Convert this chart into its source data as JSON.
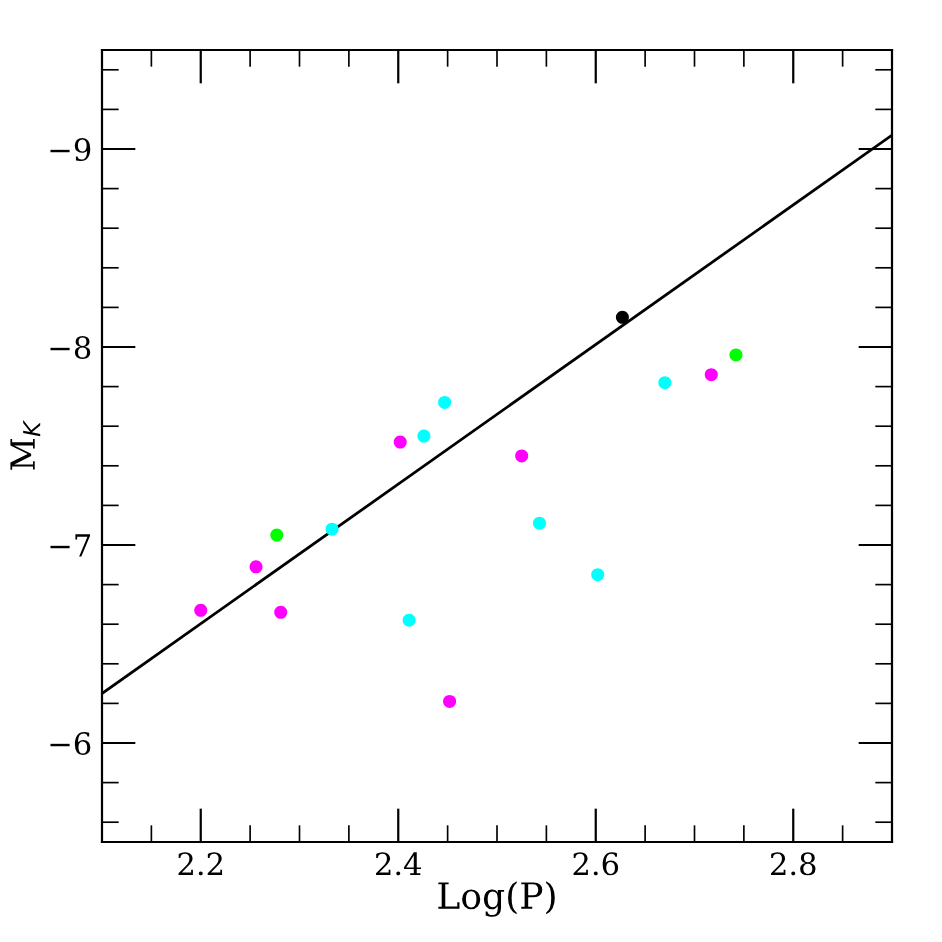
{
  "chart_data": {
    "type": "scatter",
    "xlabel": "Log(P)",
    "ylabel": "M$_{K}$",
    "xlim": [
      2.1,
      2.9
    ],
    "ylim": [
      -5.5,
      -9.5
    ],
    "xticks": [
      2.2,
      2.4,
      2.6,
      2.8
    ],
    "yticks": [
      {
        "value": -9,
        "label": "−9"
      },
      {
        "value": -8,
        "label": "−8"
      },
      {
        "value": -7,
        "label": "−7"
      },
      {
        "value": -6,
        "label": "−6"
      }
    ],
    "marker": "circle",
    "grid": false,
    "legend": false,
    "series": [
      {
        "color": "#ff00ff",
        "x": [
          2.2,
          2.256,
          2.281,
          2.402,
          2.452,
          2.525,
          2.717
        ],
        "values": [
          -6.67,
          -6.89,
          -6.66,
          -7.52,
          -6.21,
          -7.45,
          -7.86
        ]
      },
      {
        "color": "#00ffff",
        "x": [
          2.333,
          2.411,
          2.426,
          2.447,
          2.543,
          2.602,
          2.67
        ],
        "values": [
          -7.08,
          -6.62,
          -7.55,
          -7.72,
          -7.11,
          -6.85,
          -7.82
        ]
      },
      {
        "color": "#00ff00",
        "x": [
          2.277,
          2.742
        ],
        "values": [
          -7.05,
          -7.96
        ]
      },
      {
        "color": "#000000",
        "x": [
          2.627
        ],
        "values": [
          -8.15
        ]
      },
      {
        "type": "line",
        "marker": "none",
        "color": "#000000",
        "x": [
          2.1,
          2.9
        ],
        "values": [
          -6.25,
          -9.07
        ]
      }
    ]
  }
}
